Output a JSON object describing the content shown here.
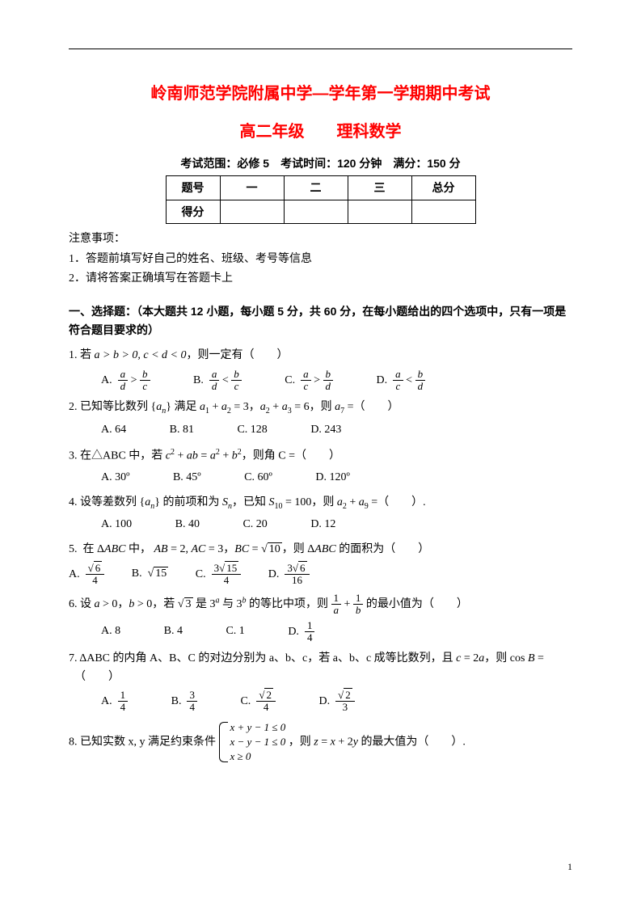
{
  "header": {
    "title_main": "岭南师范学院附属中学—学年第一学期期中考试",
    "title_sub": "高二年级　　理科数学",
    "exam_info": "考试范围：必修 5　考试时间：120 分钟　满分：150 分"
  },
  "score_table": {
    "headers": [
      "题号",
      "一",
      "二",
      "三",
      "总分"
    ],
    "row2_label": "得分"
  },
  "notes": {
    "heading": "注意事项：",
    "line1": "1．答题前填写好自己的姓名、班级、考号等信息",
    "line2": "2．请将答案正确填写在答题卡上"
  },
  "section1": {
    "title": "一、选择题：（本大题共 12 小题，每小题 5 分，共 60 分，在每小题给出的四个选项中，只有一项是符合题目要求的）"
  },
  "q1": {
    "stem_pre": "1. 若 ",
    "cond": "a > b > 0, c < d < 0",
    "stem_post": "，则一定有（　　）"
  },
  "q2": {
    "stem": "2. 已知等比数列 {aₙ} 满足 a₁ + a₂ = 3，a₂ + a₃ = 6，则 a₇ =（　　）",
    "A": "A.  64",
    "B": "B.  81",
    "C": "C.  128",
    "D": "D.  243"
  },
  "q3": {
    "stem": "3. 在△ABC 中，若 c² + ab = a² + b²，则角 C =（　　）",
    "A": "A.  30º",
    "B": "B.  45º",
    "C": "C.  60º",
    "D": "D.  120º"
  },
  "q4": {
    "stem": "4. 设等差数列 {aₙ} 的前项和为 Sₙ，已知 S₁₀ = 100，则 a₂ + a₉ =（　　）.",
    "A": "A.  100",
    "B": "B.  40",
    "C": "C.  20",
    "D": "D.  12"
  },
  "q5": {
    "stem": "5.  在 ΔABC 中， AB = 2, AC = 3，BC = √10，则 ΔABC 的面积为（　　）"
  },
  "q6": {
    "stem_pre": "6. 设 a > 0，b > 0，若 √3 是 3ᵃ 与 3ᵇ 的等比中项，则 ",
    "stem_post": " 的最小值为（　　）",
    "A": "A.  8",
    "B": "B.  4",
    "C": "C.  1",
    "D_label": "D.  "
  },
  "q7": {
    "stem": "7. ΔABC 的内角 A、B、C 的对边分别为 a、b、c，若 a、b、c 成等比数列，且 c = 2a，则 cos B =（　　）"
  },
  "q8": {
    "stem_pre": "8. 已知实数 x, y 满足约束条件 ",
    "line1": "x + y − 1 ≤ 0",
    "line2": "x − y − 1 ≤ 0",
    "line3": "x ≥ 0",
    "stem_post": "，则 z = x + 2y 的最大值为（　　）."
  },
  "page_number": "1"
}
